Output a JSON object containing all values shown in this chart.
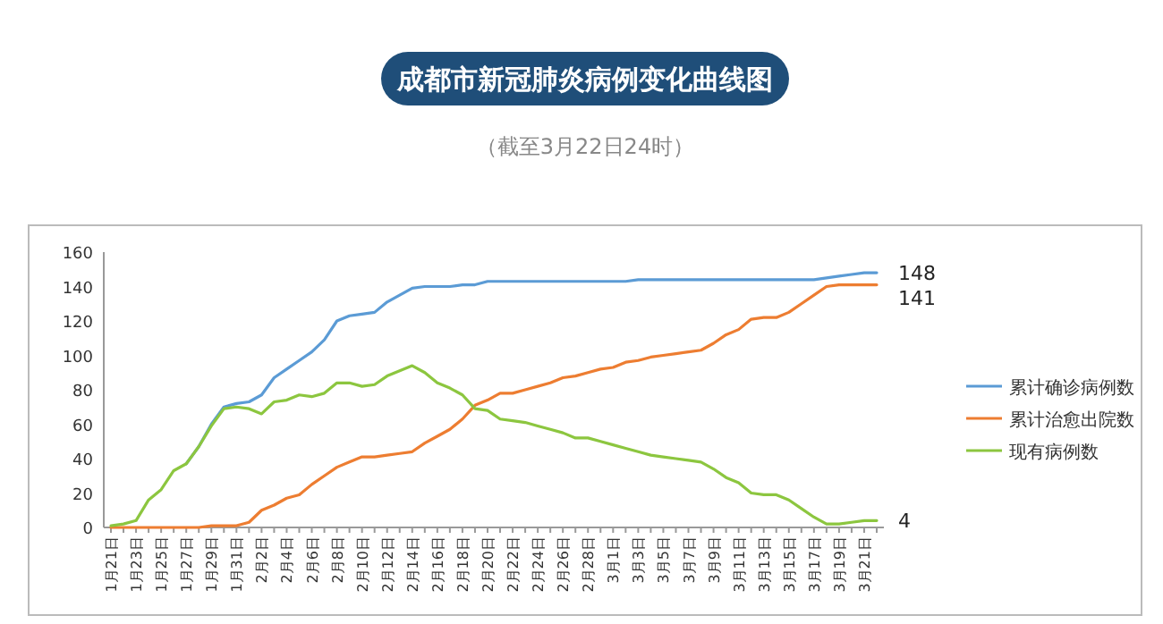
{
  "chart_data": {
    "type": "line",
    "title": "成都市新冠肺炎病例变化曲线图",
    "subtitle": "（截至3月22日24时）",
    "categories": [
      "1月21日",
      null,
      "1月23日",
      null,
      "1月25日",
      null,
      "1月27日",
      null,
      "1月29日",
      null,
      "1月31日",
      null,
      "2月2日",
      null,
      "2月4日",
      null,
      "2月6日",
      null,
      "2月8日",
      null,
      "2月10日",
      null,
      "2月12日",
      null,
      "2月14日",
      null,
      "2月16日",
      null,
      "2月18日",
      null,
      "2月20日",
      null,
      "2月22日",
      null,
      "2月24日",
      null,
      "2月26日",
      null,
      "2月28日",
      null,
      "3月1日",
      null,
      "3月3日",
      null,
      "3月5日",
      null,
      "3月7日",
      null,
      "3月9日",
      null,
      "3月11日",
      null,
      "3月13日",
      null,
      "3月15日",
      null,
      "3月17日",
      null,
      "3月19日",
      null,
      "3月21日",
      null
    ],
    "series": [
      {
        "name": "累计确诊病例数",
        "color": "#5b9bd5",
        "values": [
          null,
          null,
          null,
          null,
          null,
          null,
          37,
          47,
          60,
          70,
          72,
          73,
          77,
          87,
          92,
          97,
          102,
          109,
          120,
          123,
          124,
          125,
          131,
          135,
          139,
          140,
          140,
          140,
          141,
          141,
          143,
          143,
          143,
          143,
          143,
          143,
          143,
          143,
          143,
          143,
          143,
          143,
          144,
          144,
          144,
          144,
          144,
          144,
          144,
          144,
          144,
          144,
          144,
          144,
          144,
          144,
          144,
          145,
          146,
          147,
          148,
          148
        ],
        "value_labels": [
          null,
          null,
          null,
          null,
          null,
          null,
          null,
          null,
          null,
          null,
          null,
          null,
          null,
          null,
          null,
          null,
          null,
          null,
          null,
          null,
          null,
          null,
          null,
          null,
          null,
          null,
          null,
          null,
          null,
          null,
          null,
          null,
          null,
          null,
          null,
          null,
          null,
          null,
          null,
          null,
          null,
          null,
          null,
          null,
          null,
          null,
          null,
          null,
          null,
          null,
          null,
          null,
          null,
          null,
          null,
          null,
          null,
          null,
          null,
          null,
          null,
          "148"
        ]
      },
      {
        "name": "累计治愈出院数",
        "color": "#ed7d31",
        "values": [
          0,
          0,
          0,
          0,
          0,
          0,
          0,
          0,
          1,
          1,
          1,
          3,
          10,
          13,
          17,
          19,
          25,
          30,
          35,
          38,
          41,
          41,
          42,
          43,
          44,
          49,
          53,
          57,
          63,
          71,
          74,
          78,
          78,
          80,
          82,
          84,
          87,
          88,
          90,
          92,
          93,
          96,
          97,
          99,
          100,
          101,
          102,
          103,
          107,
          112,
          115,
          121,
          122,
          122,
          125,
          130,
          135,
          140,
          141,
          141,
          141,
          141
        ],
        "value_labels": [
          null,
          null,
          null,
          null,
          null,
          null,
          null,
          null,
          null,
          null,
          null,
          null,
          null,
          null,
          null,
          null,
          null,
          null,
          null,
          null,
          null,
          null,
          null,
          null,
          null,
          null,
          null,
          null,
          null,
          null,
          null,
          null,
          null,
          null,
          null,
          null,
          null,
          null,
          null,
          null,
          null,
          null,
          null,
          null,
          null,
          null,
          null,
          null,
          null,
          null,
          null,
          null,
          null,
          null,
          null,
          null,
          null,
          null,
          null,
          null,
          null,
          "141"
        ]
      },
      {
        "name": "现有病例数",
        "color": "#8cc63f",
        "values": [
          1,
          2,
          4,
          16,
          22,
          33,
          37,
          47,
          59,
          69,
          70,
          69,
          66,
          73,
          74,
          77,
          76,
          78,
          84,
          84,
          82,
          83,
          88,
          91,
          94,
          90,
          84,
          81,
          77,
          69,
          68,
          63,
          62,
          61,
          59,
          57,
          55,
          52,
          52,
          50,
          48,
          46,
          44,
          42,
          41,
          40,
          39,
          38,
          34,
          29,
          26,
          20,
          19,
          19,
          16,
          11,
          6,
          2,
          2,
          3,
          4,
          4
        ],
        "value_labels": [
          null,
          null,
          null,
          null,
          null,
          null,
          null,
          null,
          null,
          null,
          null,
          null,
          null,
          null,
          null,
          null,
          null,
          null,
          null,
          null,
          null,
          null,
          null,
          null,
          null,
          null,
          null,
          null,
          null,
          null,
          null,
          null,
          null,
          null,
          null,
          null,
          null,
          null,
          null,
          null,
          null,
          null,
          null,
          null,
          null,
          null,
          null,
          null,
          null,
          null,
          null,
          null,
          null,
          null,
          null,
          null,
          null,
          null,
          null,
          null,
          null,
          "4"
        ]
      }
    ],
    "ylim": [
      0,
      160
    ],
    "yticks": [
      0,
      20,
      40,
      60,
      80,
      100,
      120,
      140,
      160
    ],
    "grid": false,
    "legend": "right",
    "marker": "none",
    "line_style": "solid"
  }
}
